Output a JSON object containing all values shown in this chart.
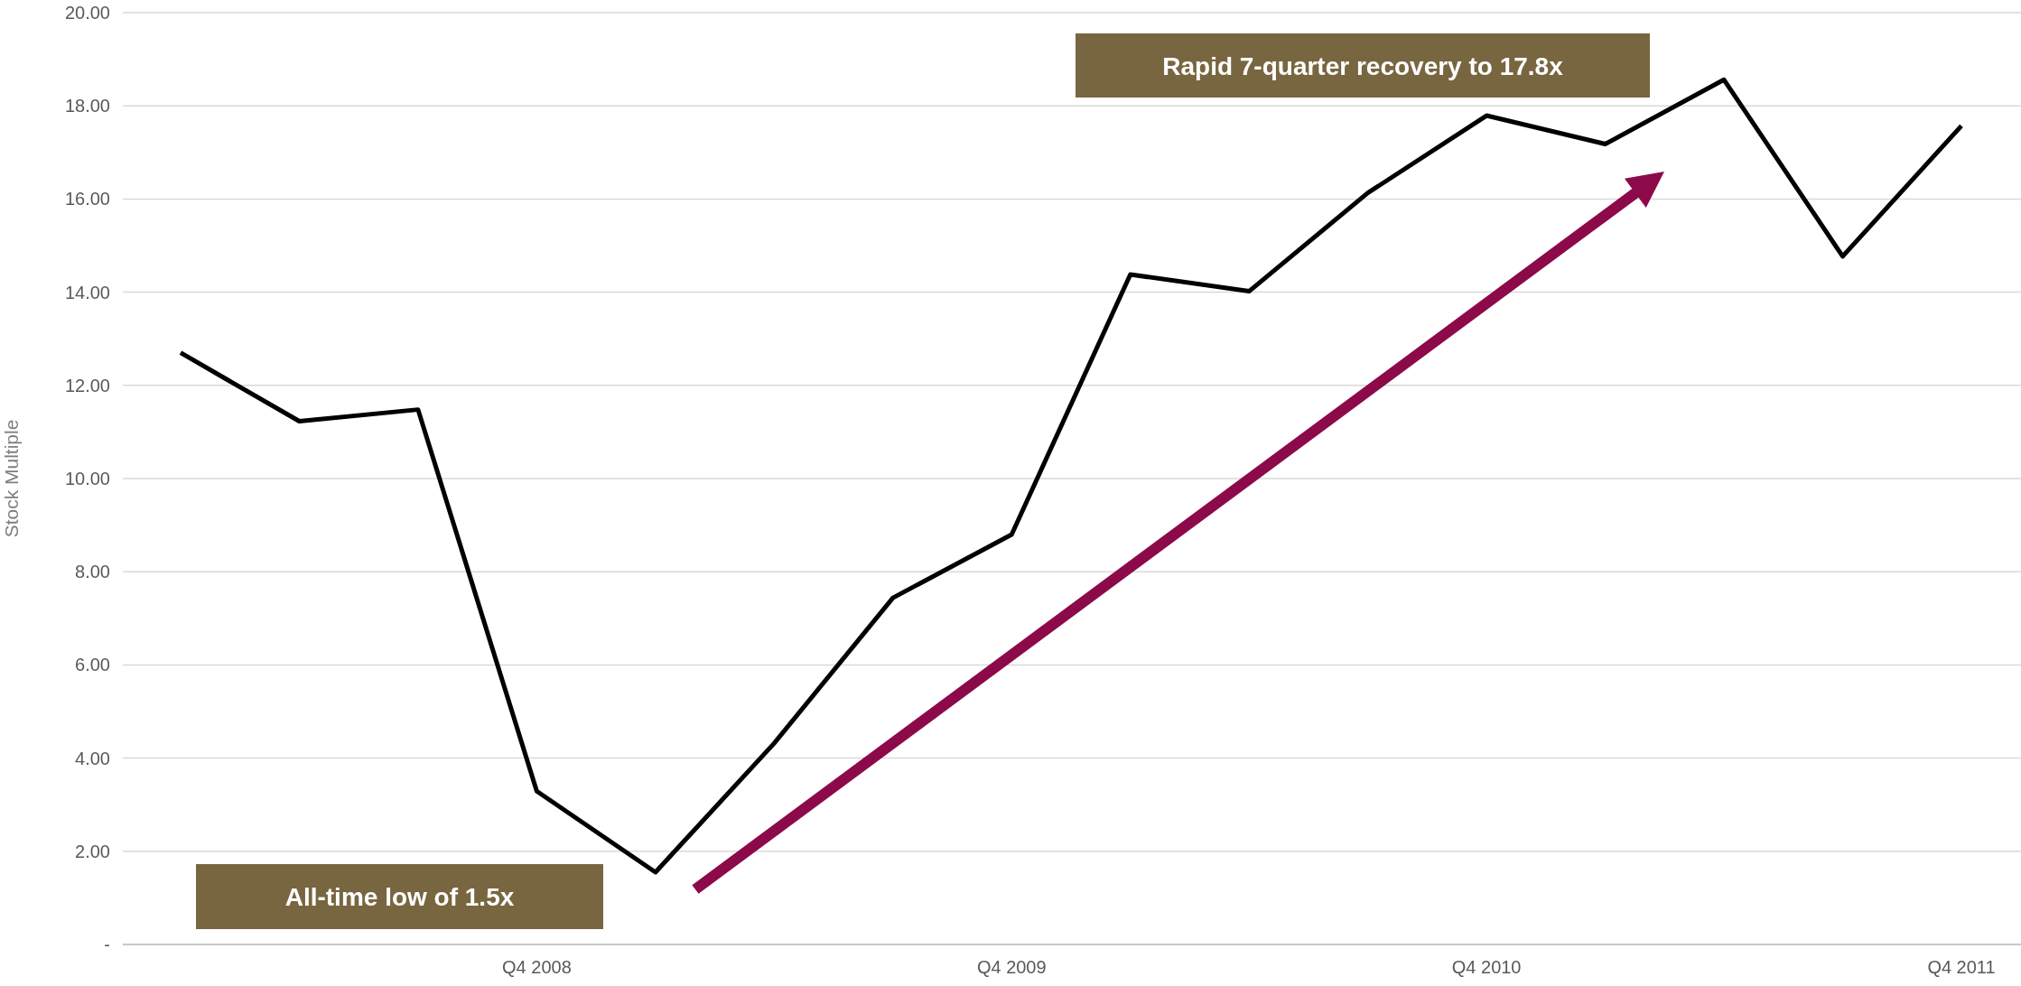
{
  "chart_data": {
    "type": "line",
    "ylabel": "Stock Multiple",
    "categories": [
      null,
      null,
      null,
      "Q4 2008",
      null,
      null,
      null,
      "Q4 2009",
      null,
      null,
      null,
      "Q4 2010",
      null,
      null,
      null,
      "Q4 2011"
    ],
    "series": [
      {
        "color": "#000000",
        "values": [
          12.7,
          11.23,
          11.48,
          3.29,
          1.55,
          4.32,
          7.44,
          8.8,
          14.38,
          14.02,
          16.13,
          17.79,
          17.18,
          18.56,
          14.77,
          17.57
        ]
      }
    ],
    "ylim": [
      0,
      20
    ],
    "yticks": [
      {
        "value": 0,
        "label": "-"
      },
      {
        "value": 2,
        "label": "2.00"
      },
      {
        "value": 4,
        "label": "4.00"
      },
      {
        "value": 6,
        "label": "6.00"
      },
      {
        "value": 8,
        "label": "8.00"
      },
      {
        "value": 10,
        "label": "10.00"
      },
      {
        "value": 12,
        "label": "12.00"
      },
      {
        "value": 14,
        "label": "14.00"
      },
      {
        "value": 16,
        "label": "16.00"
      },
      {
        "value": 18,
        "label": "18.00"
      },
      {
        "value": 20,
        "label": "20.00"
      }
    ],
    "grid": "y",
    "marker": "none",
    "line_style": "solid",
    "annotations": [
      "All-time low of 1.5x",
      "Rapid 7-quarter recovery to 17.8x"
    ]
  }
}
